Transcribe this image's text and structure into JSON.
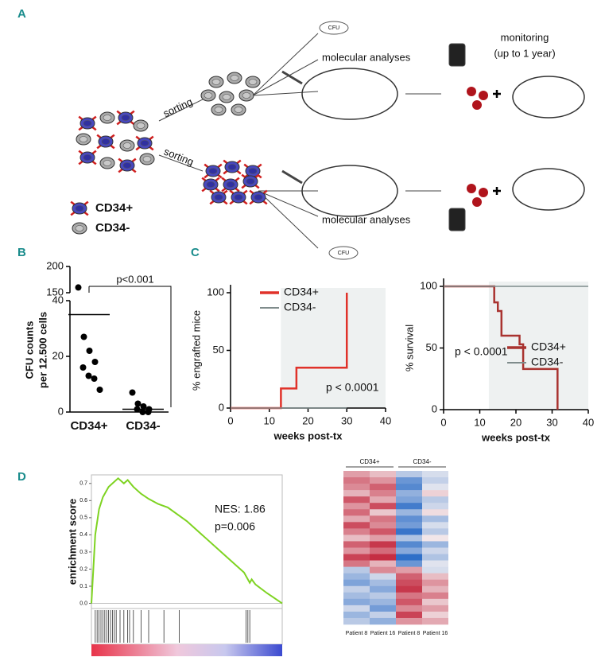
{
  "panel_labels": [
    "A",
    "B",
    "C",
    "D"
  ],
  "diagram": {
    "monitoring": "monitoring",
    "duration": "(up to 1 year)",
    "molecular_top": "molecular analyses",
    "molecular_bottom": "molecular analyses",
    "sorting_top": "sorting",
    "sorting_bottom": "sorting",
    "cfu_top": "CFU",
    "cfu_bottom": "CFU",
    "legend_pos": "CD34+",
    "legend_neg": "CD34-"
  },
  "chart_data": [
    {
      "type": "dot",
      "categories": [
        "CD34+",
        "CD34-"
      ],
      "ylabel": [
        "CFU counts",
        "per 12.500 cells"
      ],
      "points": [
        [
          160,
          27,
          22,
          18,
          16,
          13,
          12,
          8
        ],
        [
          7,
          3,
          2,
          1,
          1,
          0,
          0
        ]
      ],
      "means": [
        35,
        1
      ],
      "annotation": "p<0.001",
      "color": "#000000",
      "ylim": [
        0,
        40
      ],
      "yticks": [
        0,
        20,
        40
      ],
      "ylim_break": [
        150,
        200
      ],
      "yticks_break": [
        150,
        200
      ]
    },
    {
      "type": "step",
      "xlabel": "weeks post-tx",
      "ylabel": "% engrafted mice",
      "annotation": "p < 0.0001",
      "xlim": [
        0,
        40
      ],
      "xticks": [
        0,
        10,
        20,
        30,
        40
      ],
      "ylim": [
        0,
        100
      ],
      "yticks": [
        0,
        50,
        100
      ],
      "shade": [
        13,
        40
      ],
      "legend": "upper left",
      "series": [
        {
          "name": "CD34+",
          "color": "#e0322a",
          "x": [
            0,
            13,
            13,
            17,
            17,
            30,
            30
          ],
          "values": [
            0,
            0,
            17,
            17,
            35,
            35,
            100
          ]
        },
        {
          "name": "CD34-",
          "color": "#7f8c8c",
          "x": [
            0,
            30
          ],
          "values": [
            0,
            0
          ]
        }
      ]
    },
    {
      "type": "step",
      "xlabel": "weeks post-tx",
      "ylabel": "% survival",
      "annotation": "p < 0.0001",
      "xlim": [
        0,
        40
      ],
      "xticks": [
        0,
        10,
        20,
        30,
        40
      ],
      "ylim": [
        0,
        100
      ],
      "yticks": [
        0,
        50,
        100
      ],
      "shade": [
        12.5,
        40
      ],
      "legend": "center right",
      "series": [
        {
          "name": "CD34+",
          "color": "#a93330",
          "x": [
            0,
            14,
            14,
            15,
            15,
            16,
            16,
            21,
            21,
            22,
            22,
            31.5,
            31.5
          ],
          "values": [
            100,
            100,
            87,
            87,
            80,
            80,
            60,
            60,
            53,
            53,
            33,
            33,
            0
          ]
        },
        {
          "name": "CD34-",
          "color": "#7f8c8c",
          "x": [
            0,
            40
          ],
          "values": [
            100,
            100
          ]
        }
      ]
    },
    {
      "type": "enrichment",
      "ylabel": "enrichment score",
      "annotations": [
        "NES: 1.86",
        "p=0.006"
      ],
      "color": "#7ed321",
      "xlim": [
        0,
        100
      ],
      "ylim": [
        -0.03,
        0.75
      ],
      "yticks": [
        {
          "value": 0,
          "label": "0.0"
        },
        0.1,
        0.2,
        0.3,
        0.4,
        0.5,
        0.6,
        0.7
      ],
      "x": [
        0,
        1,
        2,
        4,
        6,
        9,
        12,
        14,
        17,
        19,
        22,
        26,
        30,
        35,
        40,
        50,
        60,
        70,
        80,
        83,
        84,
        86,
        92,
        100
      ],
      "values": [
        0,
        0.2,
        0.4,
        0.55,
        0.62,
        0.68,
        0.71,
        0.73,
        0.7,
        0.72,
        0.68,
        0.64,
        0.61,
        0.58,
        0.56,
        0.48,
        0.38,
        0.28,
        0.18,
        0.12,
        0.14,
        0.11,
        0.06,
        0
      ],
      "hits": [
        2,
        3,
        4,
        5,
        6,
        7,
        8,
        9,
        10,
        11,
        12,
        13,
        15,
        17,
        19,
        20,
        22,
        26,
        30,
        38,
        46,
        81,
        82,
        83
      ]
    },
    {
      "type": "heatmap",
      "groups": [
        "CD34+",
        "CD34-"
      ],
      "columns": [
        "Patient 8",
        "Patient 16",
        "Patient 8",
        "Patient 16"
      ],
      "zlim": [
        -2,
        2
      ],
      "colors": [
        "#2f6fc8",
        "#f4f0f2",
        "#c2243a"
      ],
      "values": [
        [
          0.8,
          0.5,
          -0.6,
          -0.3
        ],
        [
          1.2,
          0.9,
          -1.4,
          -0.5
        ],
        [
          1.0,
          1.4,
          -1.6,
          -0.2
        ],
        [
          0.6,
          1.1,
          -1.0,
          0.3
        ],
        [
          1.5,
          0.7,
          -1.2,
          -0.6
        ],
        [
          0.9,
          1.6,
          -1.8,
          -0.4
        ],
        [
          1.3,
          0.4,
          -0.9,
          0.2
        ],
        [
          0.7,
          1.2,
          -1.5,
          -0.8
        ],
        [
          1.6,
          1.0,
          -1.3,
          -0.3
        ],
        [
          1.1,
          1.5,
          -1.9,
          -0.6
        ],
        [
          0.5,
          0.8,
          -0.7,
          0.1
        ],
        [
          1.4,
          1.8,
          -1.6,
          -0.9
        ],
        [
          0.9,
          1.3,
          -1.1,
          -0.4
        ],
        [
          1.7,
          1.9,
          -2.0,
          -0.7
        ],
        [
          1.2,
          0.6,
          -1.4,
          -0.2
        ],
        [
          -0.6,
          1.0,
          0.8,
          -0.3
        ],
        [
          -0.9,
          -0.4,
          1.4,
          0.5
        ],
        [
          -1.2,
          -0.8,
          1.6,
          0.9
        ],
        [
          -0.5,
          -1.1,
          1.8,
          0.6
        ],
        [
          -0.8,
          -0.6,
          1.2,
          1.1
        ],
        [
          -1.1,
          -0.9,
          1.5,
          0.4
        ],
        [
          -0.4,
          -1.3,
          1.0,
          0.8
        ],
        [
          -0.9,
          -0.5,
          1.7,
          0.3
        ],
        [
          -0.6,
          -1.0,
          0.9,
          0.7
        ]
      ]
    }
  ]
}
